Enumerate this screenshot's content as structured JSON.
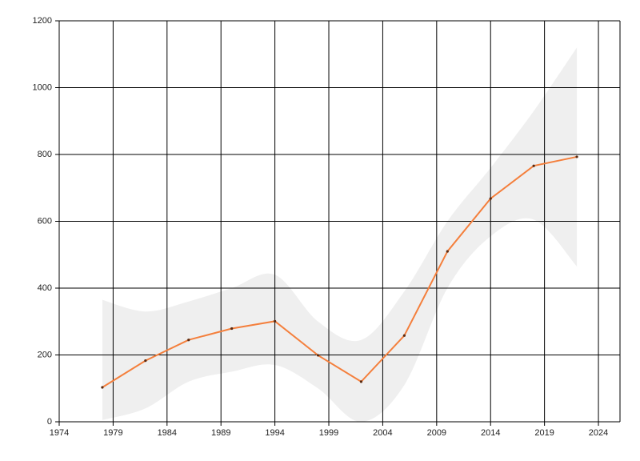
{
  "chart_data": {
    "type": "line",
    "x": [
      1978,
      1982,
      1986,
      1990,
      1994,
      1998,
      2002,
      2006,
      2010,
      2014,
      2018,
      2022
    ],
    "series": [
      {
        "color": "#f47f3c",
        "values": [
          103,
          183,
          245,
          279,
          301,
          199,
          120,
          258,
          510,
          668,
          766,
          793
        ]
      }
    ],
    "band": {
      "color": "#efefef",
      "upper": [
        365,
        330,
        360,
        400,
        440,
        300,
        245,
        390,
        600,
        760,
        930,
        1120
      ],
      "lower": [
        5,
        40,
        120,
        150,
        170,
        100,
        0,
        110,
        400,
        555,
        605,
        465
      ]
    },
    "xlim": [
      1974,
      2026
    ],
    "xticks": [
      1974,
      1979,
      1984,
      1989,
      1994,
      1999,
      2004,
      2009,
      2014,
      2019,
      2024
    ],
    "ylim": [
      0,
      1200
    ],
    "yticks": [
      0,
      200,
      400,
      600,
      800,
      1000,
      1200
    ],
    "grid": true
  }
}
